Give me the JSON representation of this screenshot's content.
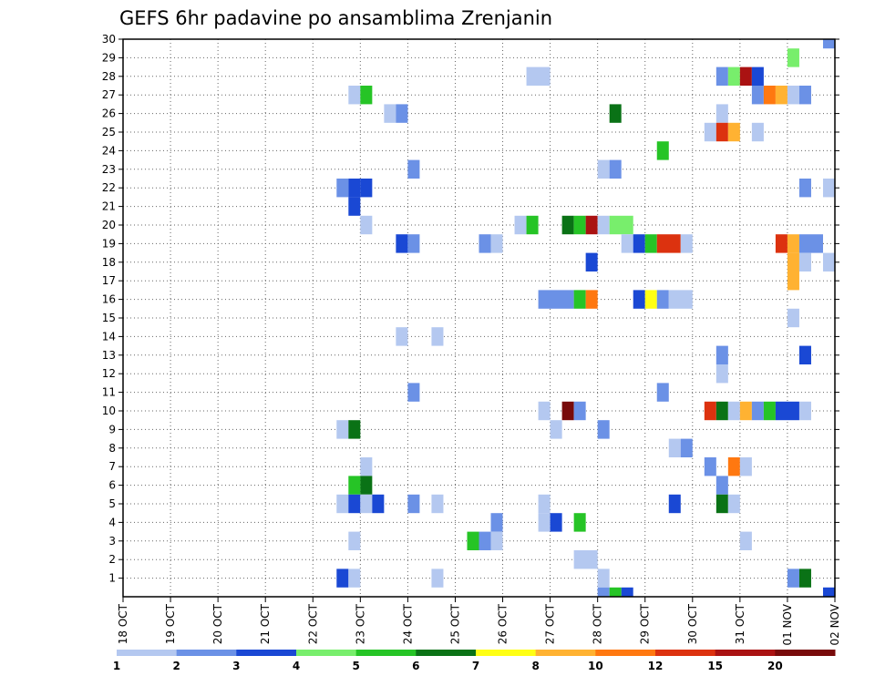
{
  "chart_data": {
    "type": "heatmap",
    "title": "GEFS 6hr padavine po ansamblima Zrenjanin",
    "xlabel": "",
    "ylabel": "",
    "x_tick_labels": [
      "18 OCT",
      "19 OCT",
      "20 OCT",
      "21 OCT",
      "22 OCT",
      "23 OCT",
      "24 OCT",
      "25 OCT",
      "26 OCT",
      "27 OCT",
      "28 OCT",
      "29 OCT",
      "30 OCT",
      "31 OCT",
      "01 NOV",
      "02 NOV"
    ],
    "y_tick_labels": [
      "1",
      "2",
      "3",
      "4",
      "5",
      "6",
      "7",
      "8",
      "9",
      "10",
      "11",
      "12",
      "13",
      "14",
      "15",
      "16",
      "17",
      "18",
      "19",
      "20",
      "21",
      "22",
      "23",
      "24",
      "25",
      "26",
      "27",
      "28",
      "29",
      "30"
    ],
    "x_range_days": [
      0,
      15
    ],
    "y_range_members": [
      0,
      30
    ],
    "grid": "dotted",
    "legend": {
      "placement": "bottom",
      "thresholds": [
        "1",
        "2",
        "3",
        "4",
        "5",
        "6",
        "7",
        "8",
        "10",
        "12",
        "15",
        "20"
      ],
      "colors": [
        "#b4c8f0",
        "#6b91e6",
        "#1a48d4",
        "#78ee6c",
        "#26c426",
        "#0a7216",
        "#ffff14",
        "#ffb232",
        "#ff7810",
        "#dc320f",
        "#aa1212",
        "#780a0a"
      ]
    },
    "cells_note": "member, start day (days after 18 OCT 00Z, 0.25 = 6h step), length in 6h steps, precipitation class index (0 = 1-2 mm ... 11 = >20 mm)",
    "cells": [
      [
        30,
        14.75,
        1,
        1
      ],
      [
        29,
        14,
        1,
        3
      ],
      [
        28,
        8.5,
        2,
        0
      ],
      [
        28,
        12.5,
        1,
        1
      ],
      [
        28,
        12.75,
        1,
        3
      ],
      [
        28,
        13,
        1,
        10
      ],
      [
        28,
        13.25,
        1,
        2
      ],
      [
        27,
        4.75,
        1,
        0
      ],
      [
        27,
        5,
        1,
        4
      ],
      [
        27,
        13.25,
        1,
        1
      ],
      [
        27,
        13.5,
        1,
        8
      ],
      [
        27,
        13.75,
        1,
        7
      ],
      [
        27,
        14,
        1,
        0
      ],
      [
        27,
        14.25,
        1,
        1
      ],
      [
        26,
        5.5,
        1,
        0
      ],
      [
        26,
        5.75,
        1,
        1
      ],
      [
        26,
        10.25,
        1,
        5
      ],
      [
        26,
        12.5,
        1,
        0
      ],
      [
        25,
        12.25,
        1,
        0
      ],
      [
        25,
        12.5,
        1,
        9
      ],
      [
        25,
        12.75,
        1,
        7
      ],
      [
        25,
        13.25,
        1,
        0
      ],
      [
        24,
        11.25,
        1,
        4
      ],
      [
        23,
        6,
        1,
        1
      ],
      [
        23,
        10,
        1,
        0
      ],
      [
        23,
        10.25,
        1,
        1
      ],
      [
        22,
        4.5,
        1,
        1
      ],
      [
        22,
        4.75,
        1,
        2
      ],
      [
        22,
        5,
        1,
        2
      ],
      [
        22,
        14.25,
        1,
        1
      ],
      [
        22,
        14.75,
        1,
        0
      ],
      [
        21,
        4.75,
        1,
        2
      ],
      [
        20,
        5,
        1,
        0
      ],
      [
        20,
        8.25,
        1,
        0
      ],
      [
        20,
        8.5,
        1,
        4
      ],
      [
        20,
        9.25,
        1,
        5
      ],
      [
        20,
        9.5,
        1,
        4
      ],
      [
        20,
        9.75,
        1,
        10
      ],
      [
        20,
        10,
        1,
        0
      ],
      [
        20,
        10.25,
        2,
        3
      ],
      [
        19,
        5.75,
        1,
        2
      ],
      [
        19,
        6,
        1,
        1
      ],
      [
        19,
        7.5,
        1,
        1
      ],
      [
        19,
        7.75,
        1,
        0
      ],
      [
        19,
        10.5,
        1,
        0
      ],
      [
        19,
        10.75,
        1,
        2
      ],
      [
        19,
        11,
        1,
        4
      ],
      [
        19,
        11.25,
        2,
        9
      ],
      [
        19,
        11.75,
        1,
        0
      ],
      [
        19,
        13.75,
        1,
        9
      ],
      [
        19,
        14,
        1,
        7
      ],
      [
        19,
        14.25,
        2,
        1
      ],
      [
        18,
        9.75,
        1,
        2
      ],
      [
        18,
        14,
        1,
        7
      ],
      [
        18,
        14.25,
        1,
        0
      ],
      [
        18,
        14.75,
        1,
        0
      ],
      [
        17,
        14,
        1,
        7
      ],
      [
        16,
        8.75,
        3,
        1
      ],
      [
        16,
        9.5,
        1,
        4
      ],
      [
        16,
        9.75,
        1,
        8
      ],
      [
        16,
        10.75,
        1,
        2
      ],
      [
        16,
        11,
        1,
        6
      ],
      [
        16,
        11.25,
        1,
        1
      ],
      [
        16,
        11.5,
        2,
        0
      ],
      [
        15,
        14,
        1,
        0
      ],
      [
        14,
        5.75,
        1,
        0
      ],
      [
        14,
        6.5,
        1,
        0
      ],
      [
        13,
        12.5,
        1,
        1
      ],
      [
        13,
        14.25,
        1,
        2
      ],
      [
        12,
        12.5,
        1,
        0
      ],
      [
        11,
        6,
        1,
        1
      ],
      [
        11,
        11.25,
        1,
        1
      ],
      [
        10,
        8.75,
        1,
        0
      ],
      [
        10,
        9.25,
        1,
        11
      ],
      [
        10,
        9.5,
        1,
        1
      ],
      [
        10,
        12.25,
        1,
        9
      ],
      [
        10,
        12.5,
        1,
        5
      ],
      [
        10,
        12.75,
        1,
        0
      ],
      [
        10,
        13,
        1,
        7
      ],
      [
        10,
        13.25,
        1,
        1
      ],
      [
        10,
        13.5,
        1,
        4
      ],
      [
        10,
        13.75,
        2,
        2
      ],
      [
        10,
        14.25,
        1,
        0
      ],
      [
        9,
        4.5,
        1,
        0
      ],
      [
        9,
        4.75,
        1,
        5
      ],
      [
        9,
        9,
        1,
        0
      ],
      [
        9,
        10,
        1,
        1
      ],
      [
        8,
        11.5,
        1,
        0
      ],
      [
        8,
        11.75,
        1,
        1
      ],
      [
        7,
        5,
        1,
        0
      ],
      [
        7,
        12.25,
        1,
        1
      ],
      [
        7,
        12.75,
        1,
        8
      ],
      [
        7,
        13,
        1,
        0
      ],
      [
        6,
        4.75,
        1,
        4
      ],
      [
        6,
        5,
        1,
        5
      ],
      [
        6,
        12.5,
        1,
        1
      ],
      [
        5,
        4.5,
        1,
        0
      ],
      [
        5,
        4.75,
        1,
        2
      ],
      [
        5,
        5,
        1,
        0
      ],
      [
        5,
        5.25,
        1,
        2
      ],
      [
        5,
        6,
        1,
        1
      ],
      [
        5,
        6.5,
        1,
        0
      ],
      [
        5,
        8.75,
        1,
        0
      ],
      [
        5,
        11.5,
        1,
        2
      ],
      [
        5,
        12.5,
        1,
        5
      ],
      [
        5,
        12.75,
        1,
        0
      ],
      [
        4,
        7.75,
        1,
        1
      ],
      [
        4,
        8.75,
        1,
        0
      ],
      [
        4,
        9,
        1,
        2
      ],
      [
        4,
        9.5,
        1,
        4
      ],
      [
        3,
        4.75,
        1,
        0
      ],
      [
        3,
        7.25,
        1,
        4
      ],
      [
        3,
        7.5,
        1,
        1
      ],
      [
        3,
        7.75,
        1,
        0
      ],
      [
        3,
        13,
        1,
        0
      ],
      [
        2,
        9.5,
        2,
        0
      ],
      [
        1,
        4.5,
        1,
        2
      ],
      [
        1,
        4.75,
        1,
        0
      ],
      [
        1,
        6.5,
        1,
        0
      ],
      [
        1,
        10,
        1,
        0
      ],
      [
        1,
        14,
        1,
        1
      ],
      [
        1,
        14.25,
        1,
        5
      ],
      [
        0,
        10,
        1,
        1
      ],
      [
        0,
        10.25,
        1,
        4
      ],
      [
        0,
        10.5,
        1,
        2
      ],
      [
        0,
        14.75,
        1,
        2
      ]
    ]
  }
}
